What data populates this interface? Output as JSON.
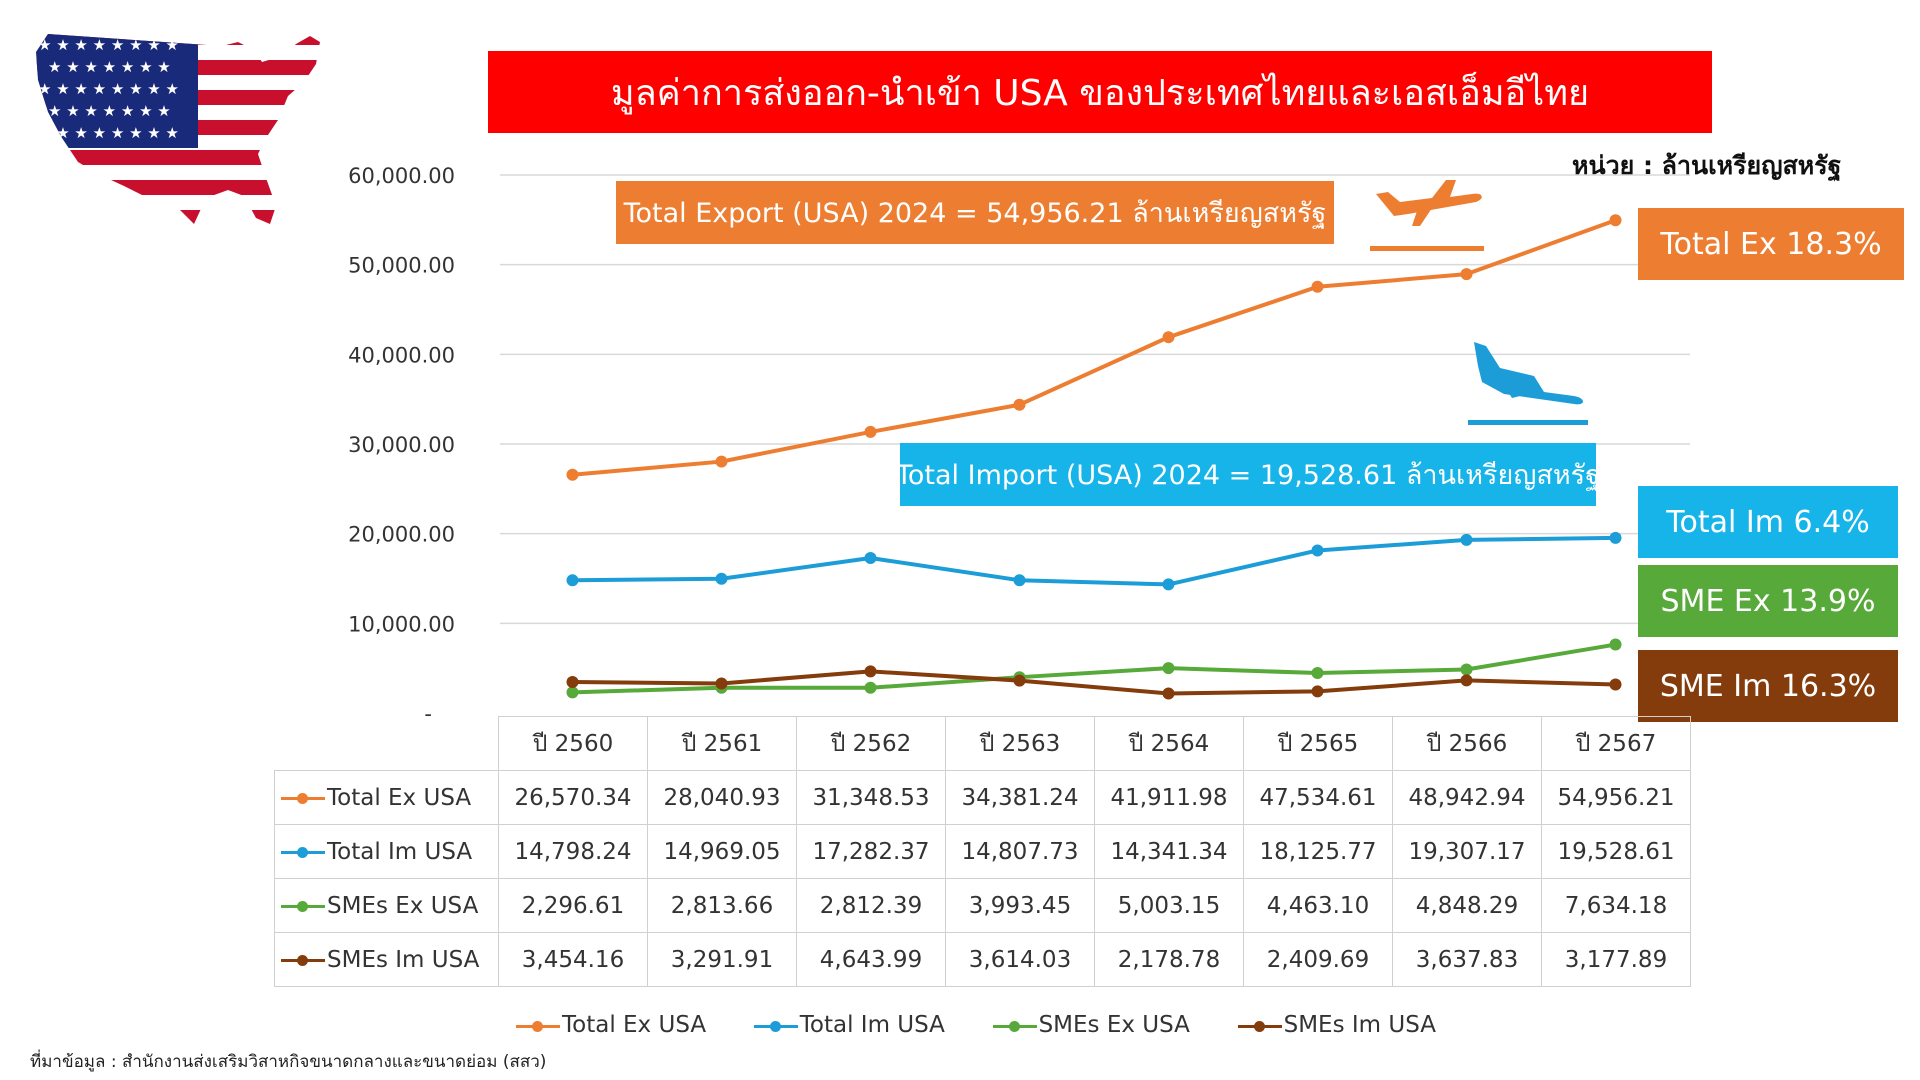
{
  "header": {
    "title": "มูลค่าการส่งออก-นำเข้า USA ของประเทศไทยและเอสเอ็มอีไทย",
    "unit": "หน่วย : ล้านเหรียญสหรัฐ"
  },
  "callouts": {
    "export": "Total Export (USA) 2024 = 54,956.21 ล้านเหรียญสหรัฐ",
    "import": "Total Import (USA) 2024 = 19,528.61 ล้านเหรียญสหรัฐ"
  },
  "badges": {
    "total_ex": "Total Ex 18.3%",
    "total_im": "Total Im 6.4%",
    "sme_ex": "SME Ex 13.9%",
    "sme_im": "SME Im 16.3%"
  },
  "icons": {
    "flag_map": "usa-flag-map-icon",
    "departure": "airplane-departure-icon",
    "arrival": "airplane-arrival-icon"
  },
  "source": "ที่มาข้อมูล : สำนักงานส่งเสริมวิสาหกิจขนาดกลางและขนาดย่อม (สสว)",
  "chart_data": {
    "type": "line",
    "title": "มูลค่าการส่งออก-นำเข้า USA ของประเทศไทยและเอสเอ็มอีไทย",
    "xlabel": "",
    "ylabel": "",
    "ylim": [
      0,
      60000
    ],
    "yticks": [
      "-",
      "10,000.00",
      "20,000.00",
      "30,000.00",
      "40,000.00",
      "50,000.00",
      "60,000.00"
    ],
    "grid": true,
    "legend_position": "bottom",
    "categories": [
      "ปี 2560",
      "ปี 2561",
      "ปี 2562",
      "ปี 2563",
      "ปี 2564",
      "ปี 2565",
      "ปี 2566",
      "ปี 2567"
    ],
    "series": [
      {
        "name": "Total Ex USA",
        "color": "#ed7d31",
        "values": [
          26570.34,
          28040.93,
          31348.53,
          34381.24,
          41911.98,
          47534.61,
          48942.94,
          54956.21
        ],
        "labels": [
          "26,570.34",
          "28,040.93",
          "31,348.53",
          "34,381.24",
          "41,911.98",
          "47,534.61",
          "48,942.94",
          "54,956.21"
        ]
      },
      {
        "name": "Total Im USA",
        "color": "#1c9dd8",
        "values": [
          14798.24,
          14969.05,
          17282.37,
          14807.73,
          14341.34,
          18125.77,
          19307.17,
          19528.61
        ],
        "labels": [
          "14,798.24",
          "14,969.05",
          "17,282.37",
          "14,807.73",
          "14,341.34",
          "18,125.77",
          "19,307.17",
          "19,528.61"
        ]
      },
      {
        "name": "SMEs Ex USA",
        "color": "#57a93a",
        "values": [
          2296.61,
          2813.66,
          2812.39,
          3993.45,
          5003.15,
          4463.1,
          4848.29,
          7634.18
        ],
        "labels": [
          "2,296.61",
          "2,813.66",
          "2,812.39",
          "3,993.45",
          "5,003.15",
          "4,463.10",
          "4,848.29",
          "7,634.18"
        ]
      },
      {
        "name": "SMEs Im USA",
        "color": "#843c0c",
        "values": [
          3454.16,
          3291.91,
          4643.99,
          3614.03,
          2178.78,
          2409.69,
          3637.83,
          3177.89
        ],
        "labels": [
          "3,454.16",
          "3,291.91",
          "4,643.99",
          "3,614.03",
          "2,178.78",
          "2,409.69",
          "3,637.83",
          "3,177.89"
        ]
      }
    ]
  }
}
